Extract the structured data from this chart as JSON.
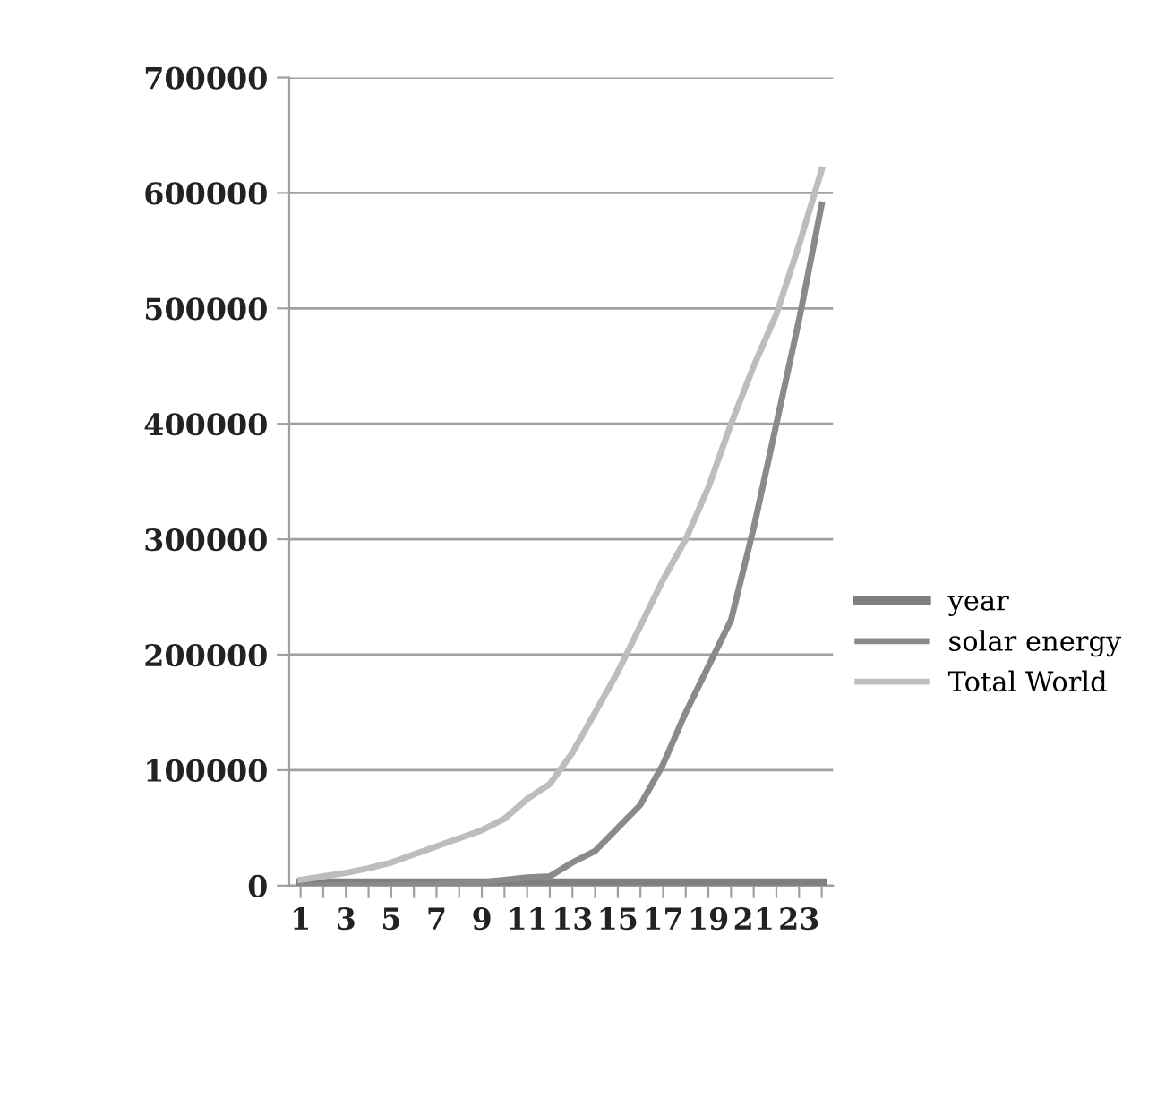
{
  "chart_data": {
    "type": "line",
    "categories": [
      "1",
      null,
      "3",
      null,
      "5",
      null,
      "7",
      null,
      "9",
      null,
      "11",
      null,
      "13",
      null,
      "15",
      null,
      "17",
      null,
      "19",
      null,
      "21",
      null,
      "23",
      null
    ],
    "series": [
      {
        "name": "year",
        "color": "#7f7f7f",
        "values": [
          2000,
          2000,
          2000,
          2000,
          2000,
          2000,
          2000,
          2000,
          2000,
          2000,
          2000,
          2000,
          2000,
          2000,
          2000,
          2000,
          2000,
          2000,
          2000,
          2000,
          2000,
          2000,
          2000,
          2000
        ]
      },
      {
        "name": "solar energy",
        "color": "#8a8a8a",
        "values": [
          0,
          0,
          0,
          0,
          0,
          1000,
          1000,
          2000,
          3000,
          5000,
          7000,
          8000,
          20000,
          30000,
          50000,
          70000,
          105000,
          150000,
          190000,
          230000,
          310000,
          400000,
          490000,
          590000
        ]
      },
      {
        "name": "Total World",
        "color": "#bdbdbd",
        "values": [
          5000,
          8000,
          11000,
          15000,
          20000,
          27000,
          34000,
          41000,
          48000,
          58000,
          75000,
          88000,
          115000,
          150000,
          185000,
          225000,
          265000,
          300000,
          345000,
          400000,
          450000,
          495000,
          555000,
          620000
        ]
      }
    ],
    "ylim": [
      0,
      700000
    ],
    "yticks": [
      0,
      100000,
      200000,
      300000,
      400000,
      500000,
      600000,
      700000
    ],
    "grid": "y",
    "legend": "right",
    "marker": "none",
    "line_style": "solid"
  }
}
